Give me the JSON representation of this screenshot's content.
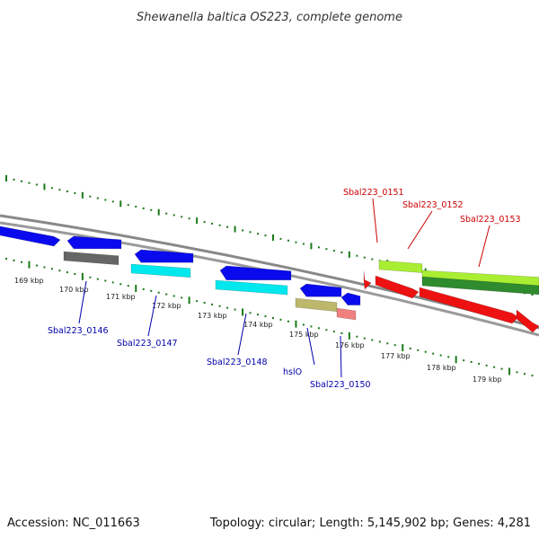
{
  "title": "Shewanella baltica OS223, complete genome",
  "footer": {
    "accession": "Accession: NC_011663",
    "topology": "Topology: circular; Length: 5,145,902 bp; Genes: 4,281"
  },
  "colors": {
    "backbone": "#888888",
    "tick": "#1a7a1a",
    "label_forward": "#cc0000",
    "label_reverse": "#0000aa",
    "blue": "#0a0aee",
    "gray": "#666666",
    "cyan": "#00e8ee",
    "khaki": "#bdb76b",
    "salmon": "#f08080",
    "lime": "#aaee33",
    "green": "#2e8b2e",
    "red": "#ee1111"
  },
  "ticks": [
    {
      "label": "169 kbp"
    },
    {
      "label": "170 kbp"
    },
    {
      "label": "171 kbp"
    },
    {
      "label": "172 kbp"
    },
    {
      "label": "173 kbp"
    },
    {
      "label": "174 kbp"
    },
    {
      "label": "175 kbp"
    },
    {
      "label": "176 kbp"
    },
    {
      "label": "177 kbp"
    },
    {
      "label": "178 kbp"
    },
    {
      "label": "179 kbp"
    }
  ],
  "gene_labels": [
    {
      "text": "Sbal223_0146",
      "strand": "reverse"
    },
    {
      "text": "Sbal223_0147",
      "strand": "reverse"
    },
    {
      "text": "Sbal223_0148",
      "strand": "reverse"
    },
    {
      "text": "hslO",
      "strand": "reverse"
    },
    {
      "text": "Sbal223_0150",
      "strand": "reverse"
    },
    {
      "text": "Sbal223_0151",
      "strand": "forward"
    },
    {
      "text": "Sbal223_0152",
      "strand": "forward"
    },
    {
      "text": "Sbal223_0153",
      "strand": "forward"
    }
  ],
  "features": [
    {
      "color": "blue",
      "ring": "reverse",
      "direction": "forward"
    },
    {
      "color": "blue",
      "ring": "reverse",
      "direction": "reverse"
    },
    {
      "color": "gray",
      "ring": "reverse2",
      "direction": "none"
    },
    {
      "color": "blue",
      "ring": "reverse",
      "direction": "reverse"
    },
    {
      "color": "cyan",
      "ring": "reverse2",
      "direction": "none"
    },
    {
      "color": "blue",
      "ring": "reverse",
      "direction": "reverse"
    },
    {
      "color": "cyan",
      "ring": "reverse2",
      "direction": "none"
    },
    {
      "color": "blue",
      "ring": "reverse",
      "direction": "reverse"
    },
    {
      "color": "khaki",
      "ring": "reverse2",
      "direction": "none"
    },
    {
      "color": "blue",
      "ring": "reverse",
      "direction": "reverse"
    },
    {
      "color": "salmon",
      "ring": "reverse2",
      "direction": "none"
    },
    {
      "color": "red",
      "ring": "forward",
      "direction": "forward"
    },
    {
      "color": "lime",
      "ring": "forward",
      "direction": "none"
    },
    {
      "color": "lime",
      "ring": "forward",
      "direction": "none"
    },
    {
      "color": "green",
      "ring": "forward",
      "direction": "none"
    },
    {
      "color": "red",
      "ring": "forward2",
      "direction": "forward"
    },
    {
      "color": "red",
      "ring": "forward2",
      "direction": "forward"
    },
    {
      "color": "red",
      "ring": "forward2",
      "direction": "forward"
    }
  ]
}
